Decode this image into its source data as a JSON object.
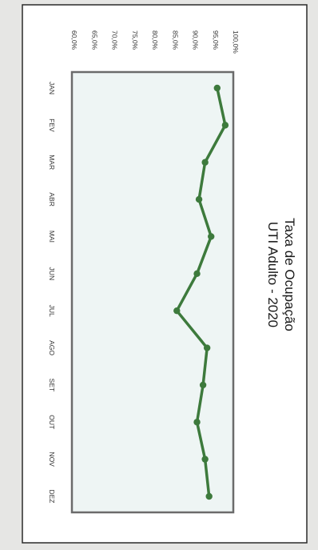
{
  "chart_data": {
    "type": "line",
    "title_lines": [
      "Taxa de Ocupação",
      "UTI Adulto - 2020"
    ],
    "categories": [
      "JAN",
      "FEV",
      "MAR",
      "ABR",
      "MAI",
      "JUN",
      "JUL",
      "AGO",
      "SET",
      "OUT",
      "NOV",
      "DEZ"
    ],
    "values": [
      96.0,
      98.0,
      93.0,
      91.5,
      94.5,
      91.0,
      86.0,
      93.5,
      92.5,
      91.0,
      93.0,
      94.0
    ],
    "yticks": [
      "60,0%",
      "65,0%",
      "70,0%",
      "75,0%",
      "80,0%",
      "85,0%",
      "90,0%",
      "95,0%",
      "100,0%"
    ],
    "ylim": [
      60,
      100
    ],
    "grid": false,
    "legend": false,
    "orientation": "rotated-90-clockwise",
    "colors": {
      "line": "#3d7a3c",
      "marker": "#3d7a3c",
      "plot_bg": "#eef5f4",
      "frame": "#6b6b6b",
      "paper": "#ffffff",
      "border": "#2a2a2a"
    }
  }
}
